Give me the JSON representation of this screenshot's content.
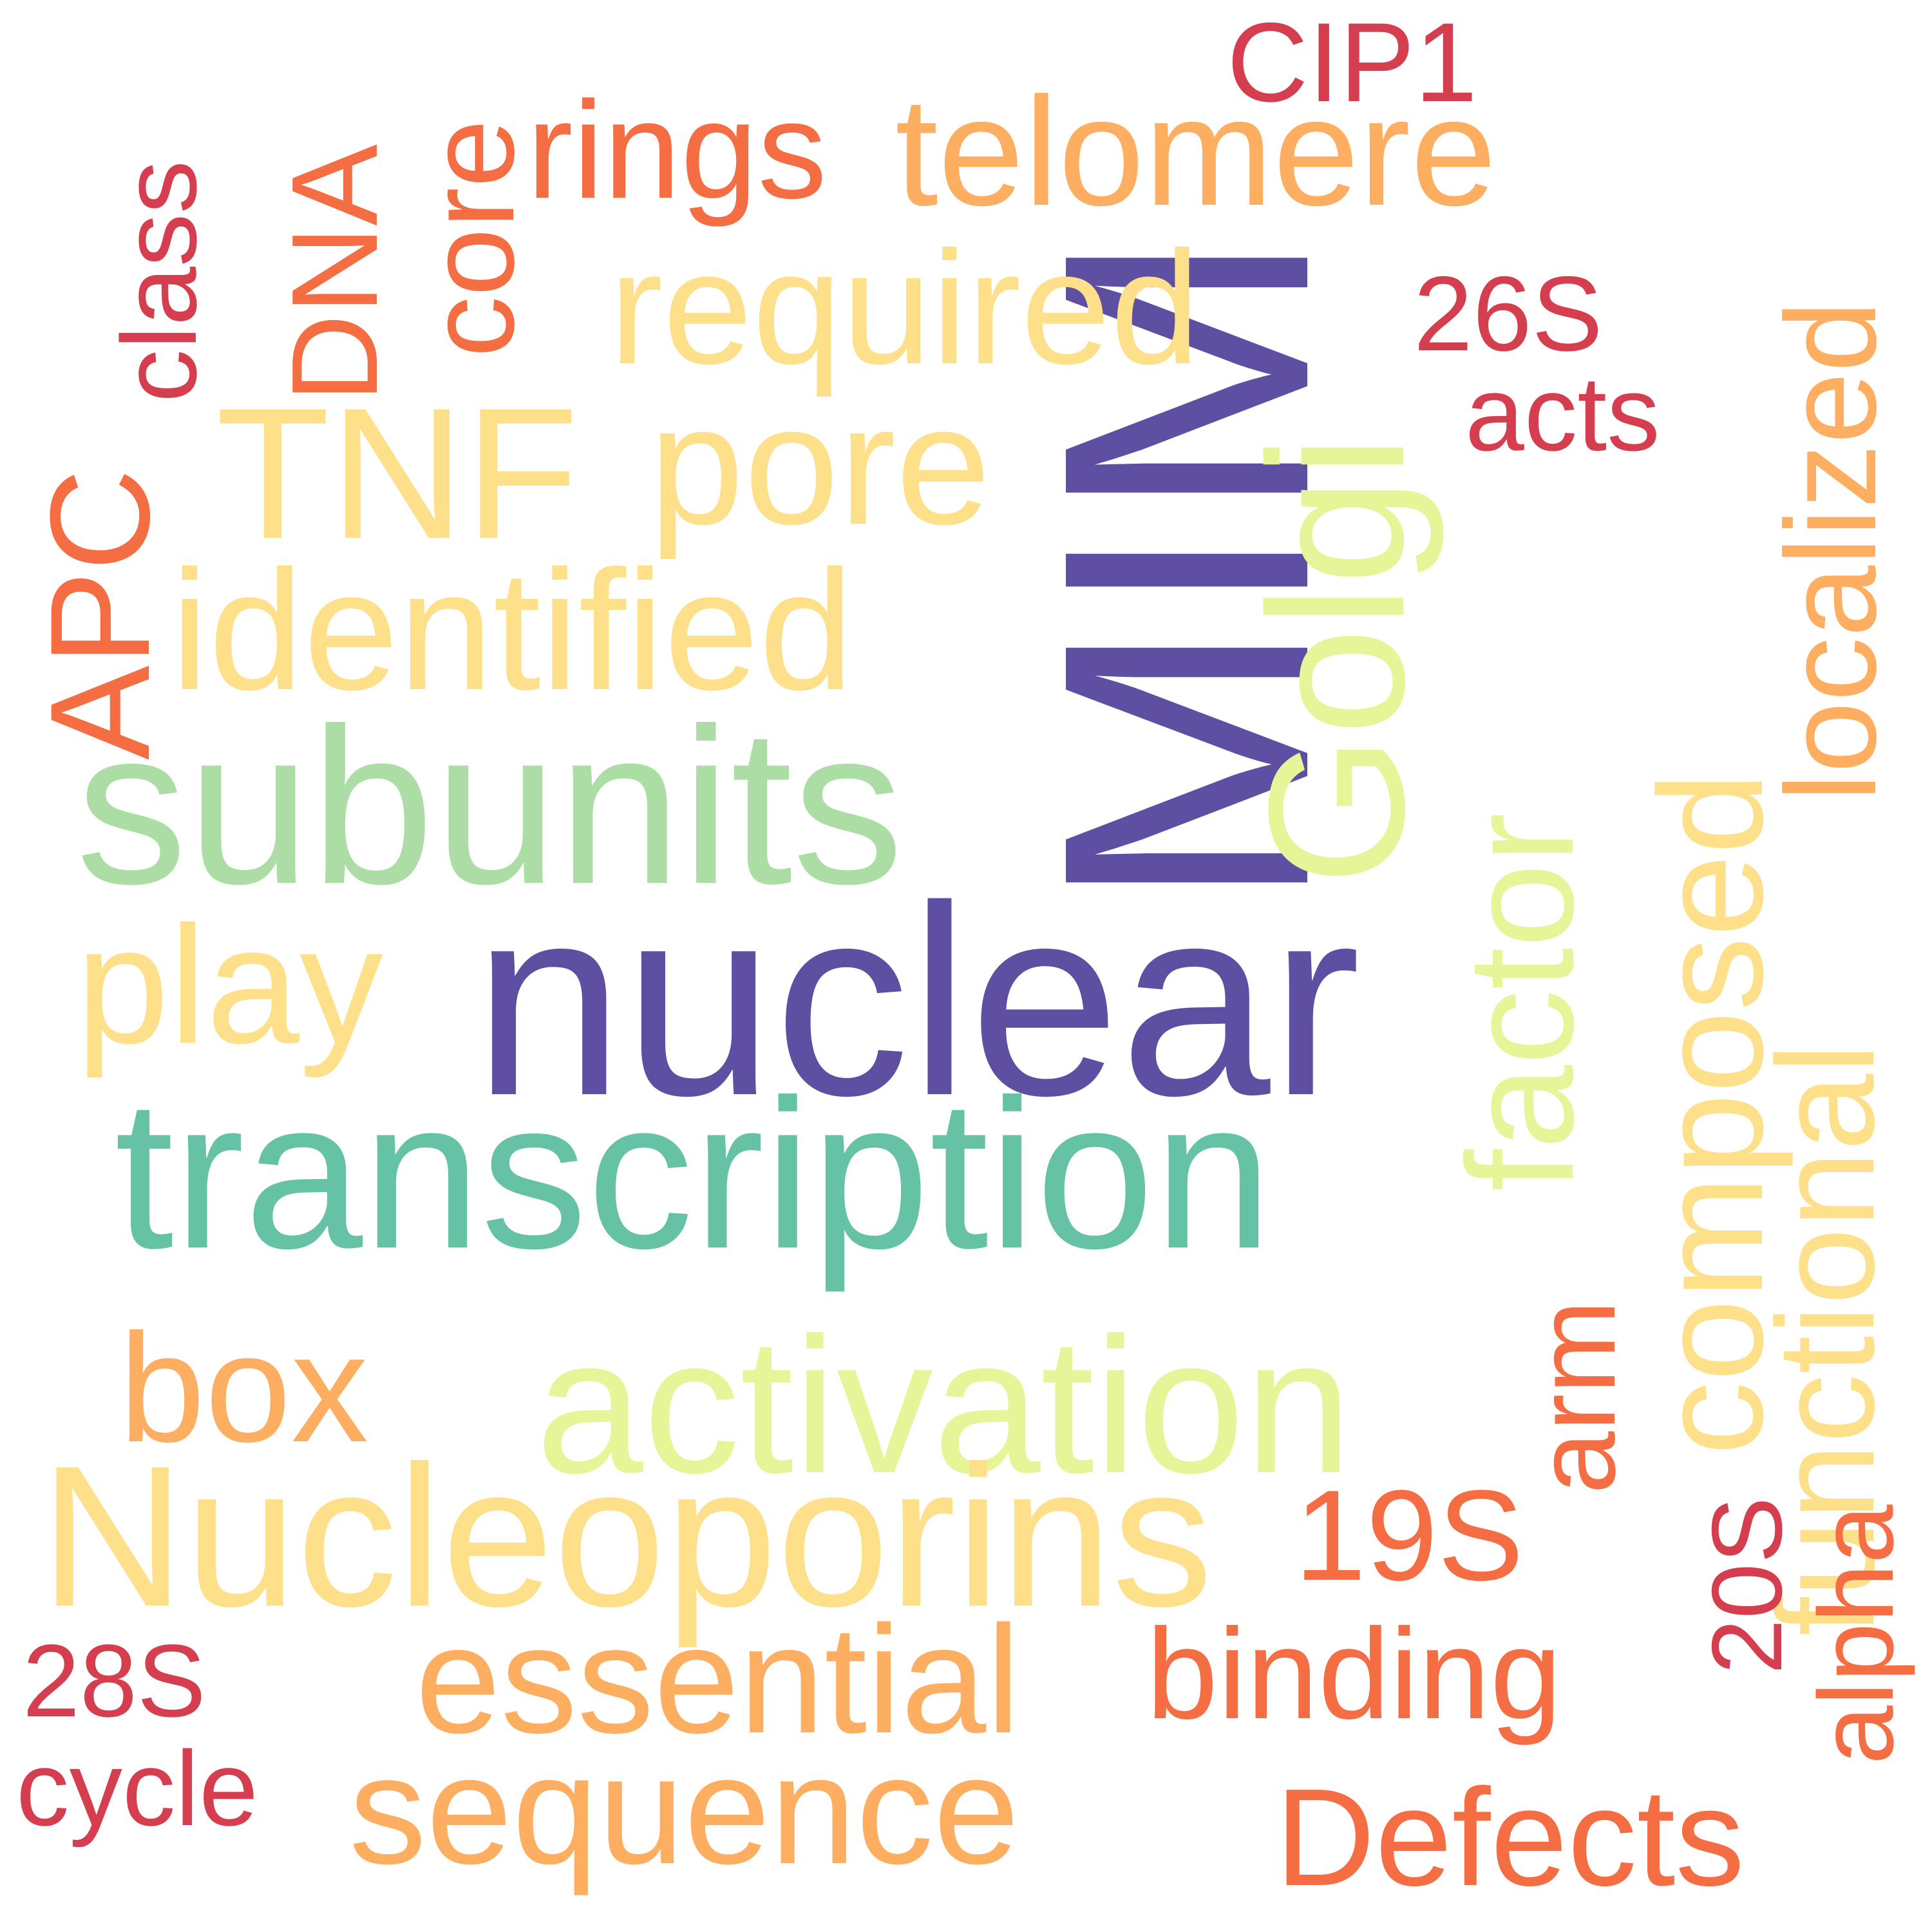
{
  "words": [
    {
      "text": "nuclear",
      "color": "#5e4fa2"
    },
    {
      "text": "MIM",
      "color": "#5e4fa2"
    },
    {
      "text": "transcription",
      "color": "#66c2a5"
    },
    {
      "text": "subunits",
      "color": "#abdda4"
    },
    {
      "text": "Golgi",
      "color": "#e6f598"
    },
    {
      "text": "activation",
      "color": "#e6f598"
    },
    {
      "text": "factor",
      "color": "#e6f598"
    },
    {
      "text": "Nucleoporins",
      "color": "#fee08b"
    },
    {
      "text": "identified",
      "color": "#fee08b"
    },
    {
      "text": "TNF",
      "color": "#fee08b"
    },
    {
      "text": "pore",
      "color": "#fee08b"
    },
    {
      "text": "required",
      "color": "#fee08b"
    },
    {
      "text": "play",
      "color": "#fee08b"
    },
    {
      "text": "composed",
      "color": "#fee08b"
    },
    {
      "text": "functional",
      "color": "#fee08b"
    },
    {
      "text": "telomere",
      "color": "#fdae61"
    },
    {
      "text": "localized",
      "color": "#fdae61"
    },
    {
      "text": "box",
      "color": "#fdae61"
    },
    {
      "text": "essential",
      "color": "#fdae61"
    },
    {
      "text": "sequence",
      "color": "#fdae61"
    },
    {
      "text": "DNA",
      "color": "#f46d43"
    },
    {
      "text": "core",
      "color": "#f46d43"
    },
    {
      "text": "rings",
      "color": "#f46d43"
    },
    {
      "text": "APC",
      "color": "#f46d43"
    },
    {
      "text": "arm",
      "color": "#f46d43"
    },
    {
      "text": "19S",
      "color": "#f46d43"
    },
    {
      "text": "binding",
      "color": "#f46d43"
    },
    {
      "text": "Defects",
      "color": "#f46d43"
    },
    {
      "text": "alpha",
      "color": "#f46d43"
    },
    {
      "text": "CIP1",
      "color": "#d53e4f"
    },
    {
      "text": "26S",
      "color": "#d53e4f"
    },
    {
      "text": "acts",
      "color": "#d53e4f"
    },
    {
      "text": "class",
      "color": "#d53e4f"
    },
    {
      "text": "20S",
      "color": "#d53e4f"
    },
    {
      "text": "28S",
      "color": "#d53e4f"
    },
    {
      "text": "cycle",
      "color": "#d53e4f"
    }
  ]
}
